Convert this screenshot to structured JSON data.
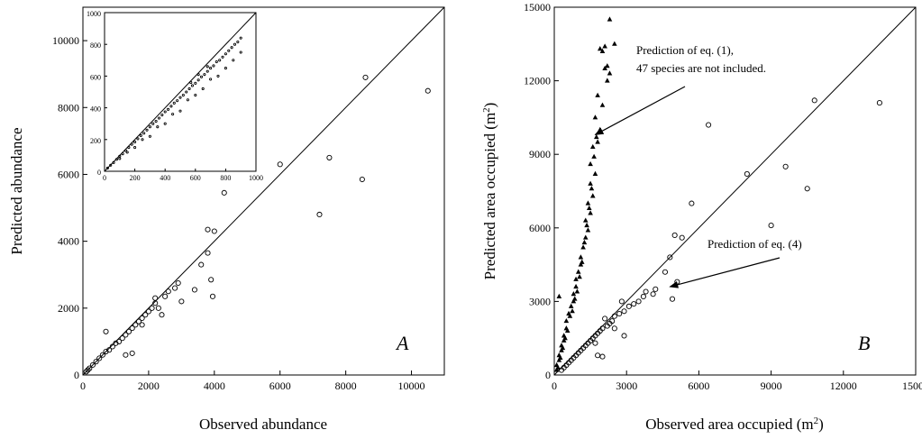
{
  "chart_data": [
    {
      "type": "scatter",
      "panel_label": "A",
      "xlabel": "Observed abundance",
      "ylabel": "Predicted abundance",
      "xlim": [
        0,
        11000
      ],
      "ylim": [
        0,
        11000
      ],
      "xticks": [
        "0",
        "2000",
        "4000",
        "6000",
        "8000",
        "10000"
      ],
      "yticks": [
        "0",
        "2000",
        "4000",
        "6000",
        "8000",
        "10000"
      ],
      "reference_line": "y = x",
      "series": [
        {
          "marker": "open-circle",
          "points": [
            [
              8600,
              8900
            ],
            [
              10500,
              8500
            ],
            [
              6000,
              6300
            ],
            [
              7500,
              6500
            ],
            [
              8500,
              5850
            ],
            [
              7200,
              4800
            ],
            [
              4300,
              5450
            ],
            [
              3800,
              4350
            ],
            [
              4000,
              4300
            ],
            [
              3800,
              3650
            ],
            [
              3600,
              3300
            ],
            [
              3900,
              2850
            ],
            [
              3950,
              2350
            ],
            [
              3400,
              2550
            ],
            [
              2900,
              2750
            ],
            [
              2800,
              2600
            ],
            [
              2600,
              2500
            ],
            [
              2500,
              2350
            ],
            [
              2200,
              2300
            ],
            [
              2200,
              2150
            ],
            [
              2100,
              2000
            ],
            [
              2000,
              1900
            ],
            [
              1900,
              1800
            ],
            [
              1800,
              1700
            ],
            [
              1700,
              1600
            ],
            [
              1600,
              1500
            ],
            [
              1500,
              1400
            ],
            [
              1400,
              1300
            ],
            [
              1300,
              1200
            ],
            [
              1200,
              1100
            ],
            [
              1100,
              1000
            ],
            [
              1000,
              950
            ],
            [
              900,
              850
            ],
            [
              800,
              750
            ],
            [
              700,
              700
            ],
            [
              600,
              600
            ],
            [
              500,
              500
            ],
            [
              400,
              400
            ],
            [
              300,
              300
            ],
            [
              200,
              200
            ],
            [
              150,
              150
            ],
            [
              100,
              100
            ],
            [
              700,
              1300
            ],
            [
              1300,
              600
            ],
            [
              1500,
              650
            ],
            [
              1800,
              1500
            ],
            [
              2300,
              2000
            ],
            [
              3000,
              2200
            ],
            [
              2400,
              1800
            ]
          ]
        }
      ],
      "inset": {
        "xlim": [
          0,
          1000
        ],
        "ylim": [
          0,
          1000
        ],
        "xticks": [
          "0",
          "200",
          "400",
          "600",
          "800",
          "1000"
        ],
        "yticks": [
          "0",
          "200",
          "400",
          "600",
          "800",
          "1000"
        ],
        "reference_line": "y = x",
        "points": [
          [
            20,
            20
          ],
          [
            40,
            38
          ],
          [
            60,
            55
          ],
          [
            80,
            75
          ],
          [
            100,
            95
          ],
          [
            120,
            110
          ],
          [
            140,
            130
          ],
          [
            160,
            150
          ],
          [
            180,
            170
          ],
          [
            200,
            185
          ],
          [
            220,
            205
          ],
          [
            240,
            225
          ],
          [
            260,
            240
          ],
          [
            280,
            260
          ],
          [
            300,
            280
          ],
          [
            320,
            300
          ],
          [
            340,
            315
          ],
          [
            360,
            335
          ],
          [
            380,
            355
          ],
          [
            400,
            375
          ],
          [
            420,
            390
          ],
          [
            440,
            410
          ],
          [
            460,
            430
          ],
          [
            480,
            445
          ],
          [
            500,
            465
          ],
          [
            520,
            480
          ],
          [
            540,
            500
          ],
          [
            560,
            520
          ],
          [
            580,
            540
          ],
          [
            600,
            555
          ],
          [
            620,
            575
          ],
          [
            640,
            595
          ],
          [
            660,
            610
          ],
          [
            680,
            630
          ],
          [
            700,
            650
          ],
          [
            720,
            665
          ],
          [
            740,
            690
          ],
          [
            760,
            700
          ],
          [
            780,
            720
          ],
          [
            800,
            740
          ],
          [
            820,
            760
          ],
          [
            840,
            780
          ],
          [
            860,
            800
          ],
          [
            880,
            815
          ],
          [
            900,
            840
          ],
          [
            150,
            120
          ],
          [
            250,
            200
          ],
          [
            350,
            280
          ],
          [
            450,
            360
          ],
          [
            550,
            450
          ],
          [
            650,
            520
          ],
          [
            750,
            600
          ],
          [
            850,
            700
          ],
          [
            300,
            220
          ],
          [
            500,
            380
          ],
          [
            600,
            480
          ],
          [
            700,
            580
          ],
          [
            800,
            650
          ],
          [
            900,
            750
          ],
          [
            400,
            300
          ],
          [
            200,
            150
          ],
          [
            100,
            80
          ],
          [
            570,
            560
          ],
          [
            620,
            610
          ],
          [
            680,
            660
          ]
        ]
      }
    },
    {
      "type": "scatter",
      "panel_label": "B",
      "xlabel": "Observed area occupied (m",
      "ylabel": "Predicted area occupied (m",
      "unit_superscript": "2",
      "xlim": [
        0,
        15000
      ],
      "ylim": [
        0,
        15000
      ],
      "xticks": [
        "0",
        "3000",
        "6000",
        "9000",
        "12000",
        "15000"
      ],
      "yticks": [
        "0",
        "3000",
        "6000",
        "9000",
        "12000",
        "15000"
      ],
      "reference_line": "y = x",
      "series": [
        {
          "marker": "filled-triangle",
          "points": [
            [
              2300,
              14500
            ],
            [
              2500,
              13500
            ],
            [
              2100,
              13400
            ],
            [
              2000,
              13200
            ],
            [
              1900,
              13300
            ],
            [
              2200,
              12600
            ],
            [
              2300,
              12300
            ],
            [
              2100,
              12500
            ],
            [
              1800,
              11400
            ],
            [
              1700,
              10500
            ],
            [
              1900,
              10000
            ],
            [
              1800,
              9500
            ],
            [
              1600,
              9300
            ],
            [
              1500,
              8600
            ],
            [
              1700,
              8200
            ],
            [
              1500,
              7800
            ],
            [
              1600,
              7300
            ],
            [
              1400,
              7000
            ],
            [
              1500,
              6600
            ],
            [
              1300,
              6300
            ],
            [
              1400,
              5900
            ],
            [
              1300,
              5600
            ],
            [
              1200,
              5200
            ],
            [
              1100,
              4800
            ],
            [
              1100,
              4500
            ],
            [
              1000,
              4200
            ],
            [
              900,
              3900
            ],
            [
              900,
              3600
            ],
            [
              800,
              3300
            ],
            [
              800,
              3000
            ],
            [
              700,
              2800
            ],
            [
              600,
              2500
            ],
            [
              500,
              2200
            ],
            [
              500,
              1900
            ],
            [
              400,
              1600
            ],
            [
              400,
              1400
            ],
            [
              300,
              1200
            ],
            [
              300,
              1000
            ],
            [
              200,
              800
            ],
            [
              200,
              600
            ],
            [
              100,
              400
            ],
            [
              100,
              200
            ],
            [
              150,
              300
            ],
            [
              250,
              700
            ],
            [
              350,
              1100
            ],
            [
              450,
              1500
            ],
            [
              550,
              1800
            ],
            [
              650,
              2400
            ],
            [
              750,
              2600
            ],
            [
              850,
              3100
            ],
            [
              950,
              3400
            ],
            [
              1050,
              4000
            ],
            [
              1150,
              4600
            ],
            [
              1250,
              5400
            ],
            [
              1350,
              6100
            ],
            [
              1450,
              6800
            ],
            [
              1550,
              7600
            ],
            [
              1650,
              8900
            ],
            [
              1750,
              9700
            ],
            [
              2000,
              11000
            ],
            [
              2200,
              12000
            ],
            [
              200,
              3200
            ]
          ]
        },
        {
          "marker": "open-circle",
          "points": [
            [
              6400,
              10200
            ],
            [
              10800,
              11200
            ],
            [
              13500,
              11100
            ],
            [
              8000,
              8200
            ],
            [
              9600,
              8500
            ],
            [
              10500,
              7600
            ],
            [
              5700,
              7000
            ],
            [
              9000,
              6100
            ],
            [
              5000,
              5700
            ],
            [
              5300,
              5600
            ],
            [
              4800,
              4800
            ],
            [
              4600,
              4200
            ],
            [
              5100,
              3800
            ],
            [
              4900,
              3100
            ],
            [
              4200,
              3500
            ],
            [
              4100,
              3300
            ],
            [
              3800,
              3400
            ],
            [
              3700,
              3200
            ],
            [
              3500,
              3000
            ],
            [
              3300,
              2900
            ],
            [
              3100,
              2800
            ],
            [
              2900,
              2600
            ],
            [
              2700,
              2500
            ],
            [
              2500,
              2400
            ],
            [
              2400,
              2200
            ],
            [
              2300,
              2100
            ],
            [
              2200,
              2000
            ],
            [
              2000,
              1900
            ],
            [
              1900,
              1800
            ],
            [
              1800,
              1700
            ],
            [
              1700,
              1600
            ],
            [
              1600,
              1500
            ],
            [
              1500,
              1400
            ],
            [
              1400,
              1300
            ],
            [
              1300,
              1200
            ],
            [
              1200,
              1100
            ],
            [
              1100,
              1000
            ],
            [
              1000,
              900
            ],
            [
              900,
              800
            ],
            [
              800,
              700
            ],
            [
              700,
              600
            ],
            [
              600,
              500
            ],
            [
              500,
              400
            ],
            [
              400,
              300
            ],
            [
              300,
              200
            ],
            [
              2800,
              3000
            ],
            [
              2100,
              2300
            ],
            [
              1700,
              1300
            ],
            [
              2500,
              1900
            ],
            [
              2900,
              1600
            ],
            [
              1800,
              800
            ],
            [
              2000,
              750
            ]
          ]
        }
      ],
      "annotations": [
        {
          "text_lines": [
            "Prediction of eq. (1),",
            "47 species are not included."
          ],
          "arrow_to": [
            1700,
            9800
          ]
        },
        {
          "text_lines": [
            "Prediction of eq. (4)"
          ],
          "arrow_to": [
            4800,
            3600
          ]
        }
      ]
    }
  ]
}
